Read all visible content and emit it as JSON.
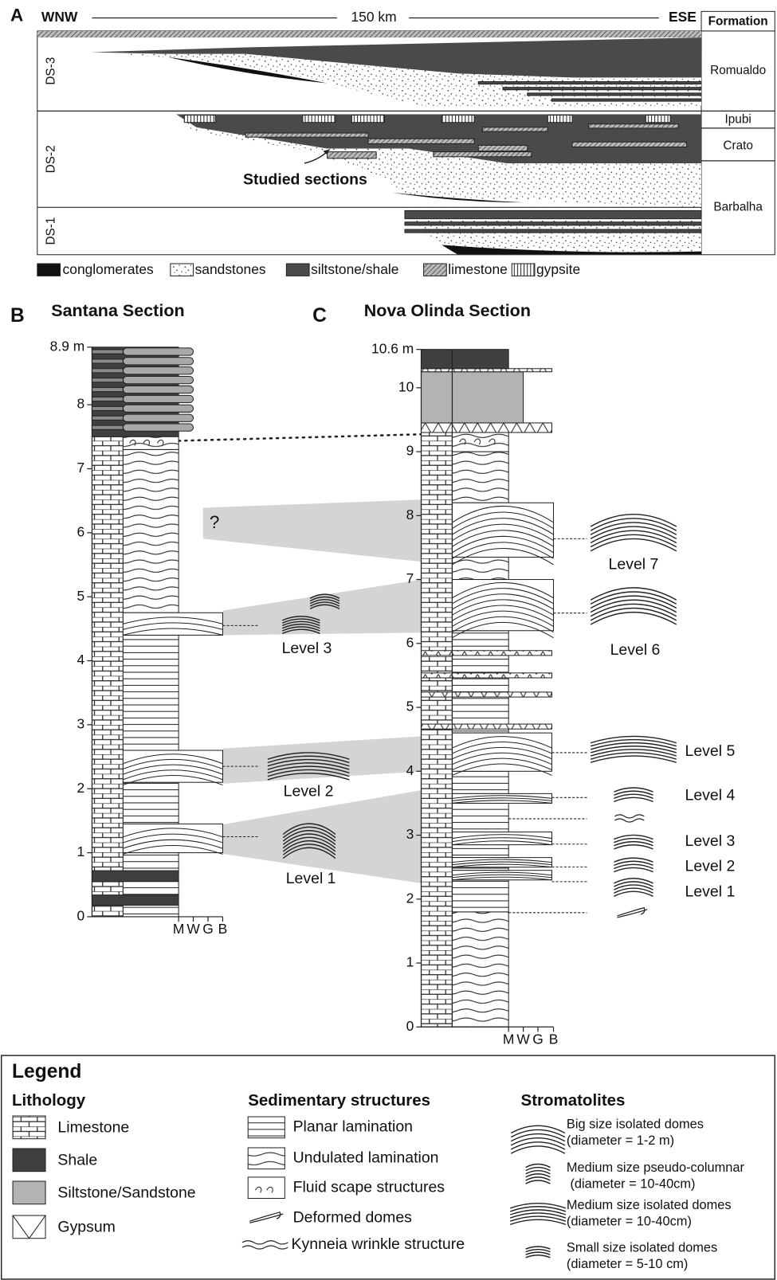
{
  "panel_a": {
    "label": "A",
    "west": "WNW",
    "distance": "150 km",
    "east": "ESE",
    "formation_header": "Formation",
    "formations": [
      "Romualdo",
      "Ipubi",
      "Crato",
      "Barbalha"
    ],
    "sequences": [
      "DS-3",
      "DS-2",
      "DS-1"
    ],
    "annotation": "Studied sections",
    "lithology_legend": [
      "conglomerates",
      "sandstones",
      "siltstone/shale",
      "limestone",
      "gypsite"
    ]
  },
  "panel_b": {
    "label": "B",
    "title": "Santana Section",
    "ticks": [
      {
        "value": 8.9,
        "label": "8.9 m"
      },
      8,
      7,
      6,
      5,
      4,
      3,
      2,
      1,
      0
    ],
    "grain_sizes": [
      "M",
      "W",
      "G",
      "B"
    ],
    "question": "?",
    "levels": [
      "Level 3",
      "Level 2",
      "Level 1"
    ]
  },
  "panel_c": {
    "label": "C",
    "title": "Nova Olinda Section",
    "ticks": [
      {
        "value": 10.6,
        "label": "10.6 m"
      },
      10,
      9,
      8,
      7,
      6,
      5,
      4,
      3,
      2,
      1,
      0
    ],
    "grain_sizes": [
      "M",
      "W",
      "G",
      "B"
    ],
    "levels": [
      "Level 7",
      "Level 6",
      "Level 5",
      "Level 4",
      "Level 3",
      "Level 2",
      "Level 1"
    ]
  },
  "legend": {
    "title": "Legend",
    "lithology": {
      "heading": "Lithology",
      "items": [
        "Limestone",
        "Shale",
        "Siltstone/Sandstone",
        "Gypsum"
      ]
    },
    "sedimentary_structures": {
      "heading": "Sedimentary structures",
      "items": [
        "Planar lamination",
        "Undulated lamination",
        "Fluid scape structures",
        "Deformed domes",
        "Kynneia wrinkle structure"
      ]
    },
    "stromatolites": {
      "heading": "Stromatolites",
      "items": [
        [
          "Big size isolated domes",
          "(diameter = 1-2 m)"
        ],
        [
          "Medium size pseudo-columnar",
          " (diameter = 10-40cm)"
        ],
        [
          "Medium size isolated domes",
          "(diameter = 10-40cm)"
        ],
        [
          "Small size isolated domes",
          "(diameter = 5-10 cm)"
        ]
      ]
    }
  }
}
